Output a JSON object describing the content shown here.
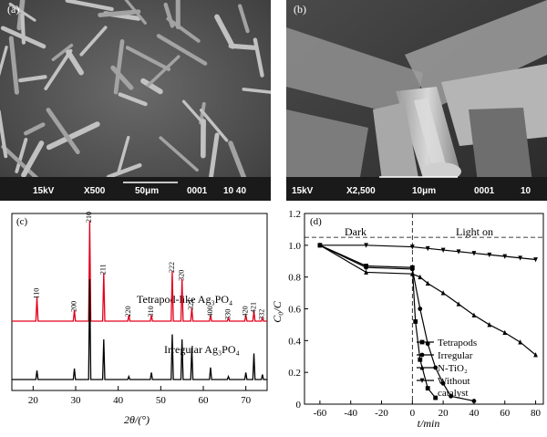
{
  "figure": {
    "panels": {
      "a": {
        "label": "(a)",
        "info_bar": {
          "voltage": "15kV",
          "magnification": "X500",
          "scale": "50μm",
          "code": "0001",
          "extra": "10 40"
        }
      },
      "b": {
        "label": "(b)",
        "info_bar": {
          "voltage": "15kV",
          "magnification": "X2,500",
          "scale": "10μm",
          "code": "0001",
          "extra": "10"
        }
      },
      "c": {
        "label": "(c)",
        "xlabel": "2θ/(°)",
        "series_labels": {
          "upper": "Tetrapod-like Ag₃PO₄",
          "lower": "Irregular Ag₃PO₄"
        },
        "peak_labels": [
          "110",
          "200",
          "210",
          "211",
          "220",
          "310",
          "222",
          "320",
          "321",
          "400",
          "330",
          "420",
          "421",
          "332"
        ],
        "x_ticks": [
          "20",
          "30",
          "40",
          "50",
          "60",
          "70"
        ]
      },
      "d": {
        "label": "(d)",
        "xlabel": "t/min",
        "ylabel": "C₀/C",
        "region_labels": {
          "dark": "Dark",
          "light": "Light on"
        },
        "x_ticks": [
          "-60",
          "-40",
          "-20",
          "0",
          "20",
          "40",
          "60",
          "80"
        ],
        "y_ticks": [
          "0",
          "0.2",
          "0.4",
          "0.6",
          "0.8",
          "1.0",
          "1.2"
        ],
        "legend": [
          "Tetrapods",
          "Irregular",
          "N-TiO₂",
          "Without",
          "catalyst"
        ]
      }
    }
  },
  "chart_data": [
    {
      "type": "line",
      "panel": "c",
      "xlabel": "2θ/(°)",
      "ylabel": "",
      "xlim": [
        15,
        75
      ],
      "series": [
        {
          "name": "Tetrapod-like Ag₃PO₄",
          "color": "#e3001b",
          "peaks": [
            [
              20.9,
              24
            ],
            [
              29.7,
              11
            ],
            [
              33.3,
              100
            ],
            [
              36.6,
              48
            ],
            [
              42.5,
              6
            ],
            [
              47.8,
              6
            ],
            [
              52.7,
              50
            ],
            [
              55.0,
              42
            ],
            [
              57.3,
              13
            ],
            [
              61.7,
              6
            ],
            [
              65.9,
              3
            ],
            [
              70.0,
              6
            ],
            [
              71.9,
              10
            ],
            [
              73.9,
              3
            ]
          ]
        },
        {
          "name": "Irregular Ag₃PO₄",
          "color": "#000000",
          "peaks": [
            [
              20.9,
              9
            ],
            [
              29.7,
              11
            ],
            [
              33.3,
              100
            ],
            [
              36.6,
              40
            ],
            [
              42.5,
              3
            ],
            [
              47.8,
              7
            ],
            [
              52.7,
              45
            ],
            [
              55.0,
              40
            ],
            [
              57.3,
              32
            ],
            [
              61.7,
              12
            ],
            [
              65.9,
              3
            ],
            [
              70.0,
              7
            ],
            [
              71.9,
              26
            ],
            [
              73.9,
              5
            ]
          ]
        }
      ]
    },
    {
      "type": "line",
      "panel": "d",
      "xlabel": "t/min",
      "ylabel": "C₀/C",
      "xlim": [
        -70,
        85
      ],
      "ylim": [
        0,
        1.2
      ],
      "series": [
        {
          "name": "Tetrapods",
          "marker": "square",
          "x": [
            -60,
            -30,
            0,
            2,
            5,
            10,
            15
          ],
          "y": [
            1.0,
            0.87,
            0.86,
            0.52,
            0.28,
            0.1,
            0.04
          ]
        },
        {
          "name": "Irregular",
          "marker": "circle",
          "x": [
            -60,
            -30,
            0,
            5,
            10,
            15,
            20,
            25,
            40
          ],
          "y": [
            1.0,
            0.86,
            0.85,
            0.6,
            0.38,
            0.23,
            0.13,
            0.05,
            0.02
          ]
        },
        {
          "name": "N-TiO₂",
          "marker": "triangle-up",
          "x": [
            -60,
            -30,
            0,
            5,
            10,
            20,
            30,
            40,
            50,
            60,
            70,
            80
          ],
          "y": [
            1.0,
            0.83,
            0.82,
            0.8,
            0.76,
            0.7,
            0.63,
            0.56,
            0.5,
            0.45,
            0.39,
            0.31
          ]
        },
        {
          "name": "Without catalyst",
          "marker": "triangle-down",
          "x": [
            -60,
            -30,
            0,
            10,
            20,
            30,
            40,
            50,
            60,
            70,
            80
          ],
          "y": [
            1.0,
            1.0,
            0.99,
            0.98,
            0.97,
            0.96,
            0.95,
            0.94,
            0.93,
            0.92,
            0.91
          ]
        }
      ]
    }
  ]
}
